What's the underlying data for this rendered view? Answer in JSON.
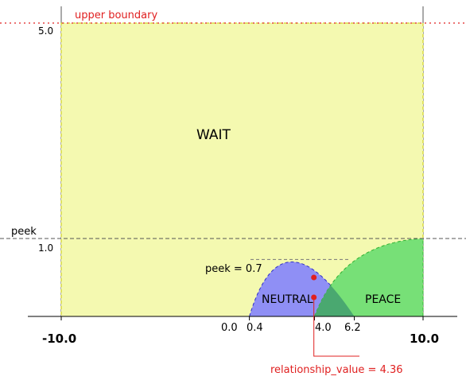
{
  "chart_data": {
    "type": "area",
    "x_range": [
      -10.0,
      10.0
    ],
    "y_top": 5.0,
    "y_ref": 1.0,
    "regions": [
      {
        "label": "WAIT",
        "color": "#f4f9b0",
        "stroke": "#c8c800"
      },
      {
        "label": "NEUTRAL",
        "color": "#8f8ff5",
        "stroke": "#3030c8",
        "x_start": 0.4,
        "x_peak": 2.0,
        "x_end": 6.2,
        "peak": 0.7
      },
      {
        "label": "PEACE",
        "color": "#77e077",
        "stroke": "#30b030",
        "x_start": 4.0,
        "x_end": 10.0,
        "peak": 1.0
      }
    ],
    "overlap_color": "#4aa870",
    "annotations": {
      "upper_boundary": "upper boundary",
      "peek": "peek",
      "peek_value": "peek = 0.7",
      "relationship_value": "relationship_value = 4.36"
    },
    "relationship_value": 4.36,
    "x_tick_labels": {
      "left": "-10.0",
      "zero": "0.0",
      "neutral_start": "0.4",
      "peace_start": "4.0",
      "neutral_end": "6.2",
      "right": "10.0"
    },
    "y_tick_labels": {
      "top": "5.0",
      "ref": "1.0"
    },
    "accent_color": "#e02020"
  }
}
